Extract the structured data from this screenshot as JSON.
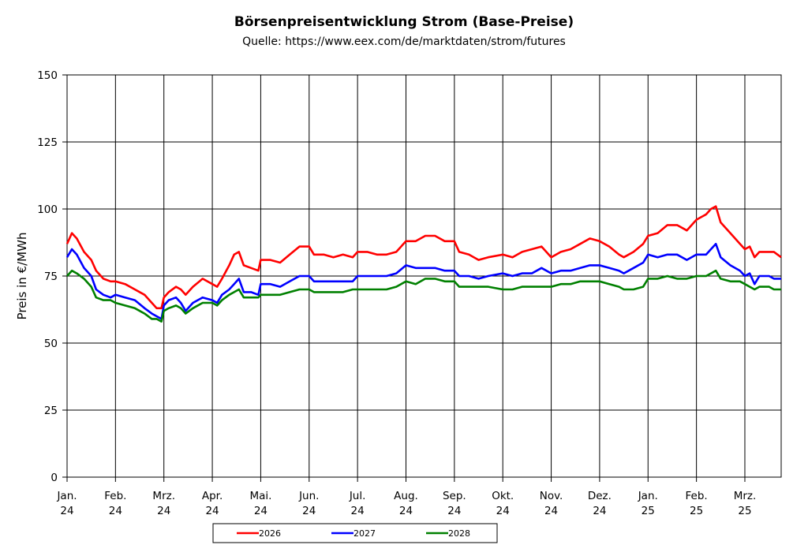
{
  "chart_data": {
    "type": "line",
    "title": "Börsenpreisentwicklung Strom (Base-Preise)",
    "subtitle": "Quelle:  https://www.eex.com/de/marktdaten/strom/futures",
    "ylabel": "Preis in €/MWh",
    "xlabel": "",
    "ylim": [
      0,
      150
    ],
    "yticks": [
      0,
      25,
      50,
      75,
      100,
      125,
      150
    ],
    "xlim": [
      0,
      14.75
    ],
    "x_unit": "months since Jan. 24",
    "x_ticks": [
      {
        "month": "Jan.",
        "year": "24"
      },
      {
        "month": "Feb.",
        "year": "24"
      },
      {
        "month": "Mrz.",
        "year": "24"
      },
      {
        "month": "Apr.",
        "year": "24"
      },
      {
        "month": "Mai.",
        "year": "24"
      },
      {
        "month": "Jun.",
        "year": "24"
      },
      {
        "month": "Jul.",
        "year": "24"
      },
      {
        "month": "Aug.",
        "year": "24"
      },
      {
        "month": "Sep.",
        "year": "24"
      },
      {
        "month": "Okt.",
        "year": "24"
      },
      {
        "month": "Nov.",
        "year": "24"
      },
      {
        "month": "Dez.",
        "year": "24"
      },
      {
        "month": "Jan.",
        "year": "25"
      },
      {
        "month": "Feb.",
        "year": "25"
      },
      {
        "month": "Mrz.",
        "year": "25"
      }
    ],
    "grid": true,
    "legend_position": "bottom",
    "series": [
      {
        "name": "2026",
        "color": "#ff0000",
        "points": [
          [
            0,
            87
          ],
          [
            0.1,
            91
          ],
          [
            0.2,
            89
          ],
          [
            0.35,
            84
          ],
          [
            0.5,
            81
          ],
          [
            0.6,
            77
          ],
          [
            0.75,
            74
          ],
          [
            0.9,
            73
          ],
          [
            1.0,
            73
          ],
          [
            1.2,
            72
          ],
          [
            1.4,
            70
          ],
          [
            1.6,
            68
          ],
          [
            1.75,
            65
          ],
          [
            1.85,
            63
          ],
          [
            1.95,
            63
          ],
          [
            2.0,
            67
          ],
          [
            2.1,
            69
          ],
          [
            2.25,
            71
          ],
          [
            2.35,
            70
          ],
          [
            2.45,
            68
          ],
          [
            2.6,
            71
          ],
          [
            2.8,
            74
          ],
          [
            3.0,
            72
          ],
          [
            3.1,
            71
          ],
          [
            3.2,
            74
          ],
          [
            3.35,
            79
          ],
          [
            3.45,
            83
          ],
          [
            3.55,
            84
          ],
          [
            3.65,
            79
          ],
          [
            3.8,
            78
          ],
          [
            3.95,
            77
          ],
          [
            4.0,
            81
          ],
          [
            4.2,
            81
          ],
          [
            4.4,
            80
          ],
          [
            4.6,
            83
          ],
          [
            4.8,
            86
          ],
          [
            5.0,
            86
          ],
          [
            5.1,
            83
          ],
          [
            5.3,
            83
          ],
          [
            5.5,
            82
          ],
          [
            5.7,
            83
          ],
          [
            5.9,
            82
          ],
          [
            6.0,
            84
          ],
          [
            6.2,
            84
          ],
          [
            6.4,
            83
          ],
          [
            6.6,
            83
          ],
          [
            6.8,
            84
          ],
          [
            7.0,
            88
          ],
          [
            7.2,
            88
          ],
          [
            7.4,
            90
          ],
          [
            7.6,
            90
          ],
          [
            7.8,
            88
          ],
          [
            8.0,
            88
          ],
          [
            8.1,
            84
          ],
          [
            8.3,
            83
          ],
          [
            8.5,
            81
          ],
          [
            8.7,
            82
          ],
          [
            9.0,
            83
          ],
          [
            9.2,
            82
          ],
          [
            9.4,
            84
          ],
          [
            9.6,
            85
          ],
          [
            9.8,
            86
          ],
          [
            10.0,
            82
          ],
          [
            10.2,
            84
          ],
          [
            10.4,
            85
          ],
          [
            10.6,
            87
          ],
          [
            10.8,
            89
          ],
          [
            11.0,
            88
          ],
          [
            11.2,
            86
          ],
          [
            11.4,
            83
          ],
          [
            11.5,
            82
          ],
          [
            11.7,
            84
          ],
          [
            11.9,
            87
          ],
          [
            12.0,
            90
          ],
          [
            12.2,
            91
          ],
          [
            12.4,
            94
          ],
          [
            12.6,
            94
          ],
          [
            12.8,
            92
          ],
          [
            13.0,
            96
          ],
          [
            13.2,
            98
          ],
          [
            13.3,
            100
          ],
          [
            13.4,
            101
          ],
          [
            13.5,
            95
          ],
          [
            13.7,
            91
          ],
          [
            13.9,
            87
          ],
          [
            14.0,
            85
          ],
          [
            14.1,
            86
          ],
          [
            14.2,
            82
          ],
          [
            14.3,
            84
          ],
          [
            14.5,
            84
          ],
          [
            14.6,
            84
          ],
          [
            14.75,
            82
          ]
        ]
      },
      {
        "name": "2027",
        "color": "#0000ff",
        "points": [
          [
            0,
            82
          ],
          [
            0.1,
            85
          ],
          [
            0.2,
            83
          ],
          [
            0.35,
            78
          ],
          [
            0.5,
            75
          ],
          [
            0.6,
            70
          ],
          [
            0.75,
            68
          ],
          [
            0.9,
            67
          ],
          [
            1.0,
            68
          ],
          [
            1.2,
            67
          ],
          [
            1.4,
            66
          ],
          [
            1.6,
            63
          ],
          [
            1.75,
            61
          ],
          [
            1.85,
            60
          ],
          [
            1.95,
            59
          ],
          [
            2.0,
            64
          ],
          [
            2.1,
            66
          ],
          [
            2.25,
            67
          ],
          [
            2.35,
            65
          ],
          [
            2.45,
            62
          ],
          [
            2.6,
            65
          ],
          [
            2.8,
            67
          ],
          [
            3.0,
            66
          ],
          [
            3.1,
            65
          ],
          [
            3.2,
            68
          ],
          [
            3.35,
            70
          ],
          [
            3.45,
            72
          ],
          [
            3.55,
            74
          ],
          [
            3.65,
            69
          ],
          [
            3.8,
            69
          ],
          [
            3.95,
            68
          ],
          [
            4.0,
            72
          ],
          [
            4.2,
            72
          ],
          [
            4.4,
            71
          ],
          [
            4.6,
            73
          ],
          [
            4.8,
            75
          ],
          [
            5.0,
            75
          ],
          [
            5.1,
            73
          ],
          [
            5.3,
            73
          ],
          [
            5.5,
            73
          ],
          [
            5.7,
            73
          ],
          [
            5.9,
            73
          ],
          [
            6.0,
            75
          ],
          [
            6.2,
            75
          ],
          [
            6.4,
            75
          ],
          [
            6.6,
            75
          ],
          [
            6.8,
            76
          ],
          [
            7.0,
            79
          ],
          [
            7.2,
            78
          ],
          [
            7.4,
            78
          ],
          [
            7.6,
            78
          ],
          [
            7.8,
            77
          ],
          [
            8.0,
            77
          ],
          [
            8.1,
            75
          ],
          [
            8.3,
            75
          ],
          [
            8.5,
            74
          ],
          [
            8.7,
            75
          ],
          [
            9.0,
            76
          ],
          [
            9.2,
            75
          ],
          [
            9.4,
            76
          ],
          [
            9.6,
            76
          ],
          [
            9.8,
            78
          ],
          [
            10.0,
            76
          ],
          [
            10.2,
            77
          ],
          [
            10.4,
            77
          ],
          [
            10.6,
            78
          ],
          [
            10.8,
            79
          ],
          [
            11.0,
            79
          ],
          [
            11.2,
            78
          ],
          [
            11.4,
            77
          ],
          [
            11.5,
            76
          ],
          [
            11.7,
            78
          ],
          [
            11.9,
            80
          ],
          [
            12.0,
            83
          ],
          [
            12.2,
            82
          ],
          [
            12.4,
            83
          ],
          [
            12.6,
            83
          ],
          [
            12.8,
            81
          ],
          [
            13.0,
            83
          ],
          [
            13.2,
            83
          ],
          [
            13.3,
            85
          ],
          [
            13.4,
            87
          ],
          [
            13.5,
            82
          ],
          [
            13.7,
            79
          ],
          [
            13.9,
            77
          ],
          [
            14.0,
            75
          ],
          [
            14.1,
            76
          ],
          [
            14.2,
            72
          ],
          [
            14.3,
            75
          ],
          [
            14.5,
            75
          ],
          [
            14.6,
            74
          ],
          [
            14.75,
            74
          ]
        ]
      },
      {
        "name": "2028",
        "color": "#008000",
        "points": [
          [
            0,
            75
          ],
          [
            0.1,
            77
          ],
          [
            0.2,
            76
          ],
          [
            0.35,
            74
          ],
          [
            0.5,
            71
          ],
          [
            0.6,
            67
          ],
          [
            0.75,
            66
          ],
          [
            0.9,
            66
          ],
          [
            1.0,
            65
          ],
          [
            1.2,
            64
          ],
          [
            1.4,
            63
          ],
          [
            1.6,
            61
          ],
          [
            1.75,
            59
          ],
          [
            1.85,
            59
          ],
          [
            1.95,
            58
          ],
          [
            2.0,
            62
          ],
          [
            2.1,
            63
          ],
          [
            2.25,
            64
          ],
          [
            2.35,
            63
          ],
          [
            2.45,
            61
          ],
          [
            2.6,
            63
          ],
          [
            2.8,
            65
          ],
          [
            3.0,
            65
          ],
          [
            3.1,
            64
          ],
          [
            3.2,
            66
          ],
          [
            3.35,
            68
          ],
          [
            3.45,
            69
          ],
          [
            3.55,
            70
          ],
          [
            3.65,
            67
          ],
          [
            3.8,
            67
          ],
          [
            3.95,
            67
          ],
          [
            4.0,
            68
          ],
          [
            4.2,
            68
          ],
          [
            4.4,
            68
          ],
          [
            4.6,
            69
          ],
          [
            4.8,
            70
          ],
          [
            5.0,
            70
          ],
          [
            5.1,
            69
          ],
          [
            5.3,
            69
          ],
          [
            5.5,
            69
          ],
          [
            5.7,
            69
          ],
          [
            5.9,
            70
          ],
          [
            6.0,
            70
          ],
          [
            6.2,
            70
          ],
          [
            6.4,
            70
          ],
          [
            6.6,
            70
          ],
          [
            6.8,
            71
          ],
          [
            7.0,
            73
          ],
          [
            7.2,
            72
          ],
          [
            7.4,
            74
          ],
          [
            7.6,
            74
          ],
          [
            7.8,
            73
          ],
          [
            8.0,
            73
          ],
          [
            8.1,
            71
          ],
          [
            8.3,
            71
          ],
          [
            8.5,
            71
          ],
          [
            8.7,
            71
          ],
          [
            9.0,
            70
          ],
          [
            9.2,
            70
          ],
          [
            9.4,
            71
          ],
          [
            9.6,
            71
          ],
          [
            9.8,
            71
          ],
          [
            10.0,
            71
          ],
          [
            10.2,
            72
          ],
          [
            10.4,
            72
          ],
          [
            10.6,
            73
          ],
          [
            10.8,
            73
          ],
          [
            11.0,
            73
          ],
          [
            11.2,
            72
          ],
          [
            11.4,
            71
          ],
          [
            11.5,
            70
          ],
          [
            11.7,
            70
          ],
          [
            11.9,
            71
          ],
          [
            12.0,
            74
          ],
          [
            12.2,
            74
          ],
          [
            12.4,
            75
          ],
          [
            12.6,
            74
          ],
          [
            12.8,
            74
          ],
          [
            13.0,
            75
          ],
          [
            13.2,
            75
          ],
          [
            13.3,
            76
          ],
          [
            13.4,
            77
          ],
          [
            13.5,
            74
          ],
          [
            13.7,
            73
          ],
          [
            13.9,
            73
          ],
          [
            14.0,
            72
          ],
          [
            14.1,
            71
          ],
          [
            14.2,
            70
          ],
          [
            14.3,
            71
          ],
          [
            14.5,
            71
          ],
          [
            14.6,
            70
          ],
          [
            14.75,
            70
          ]
        ]
      }
    ]
  }
}
